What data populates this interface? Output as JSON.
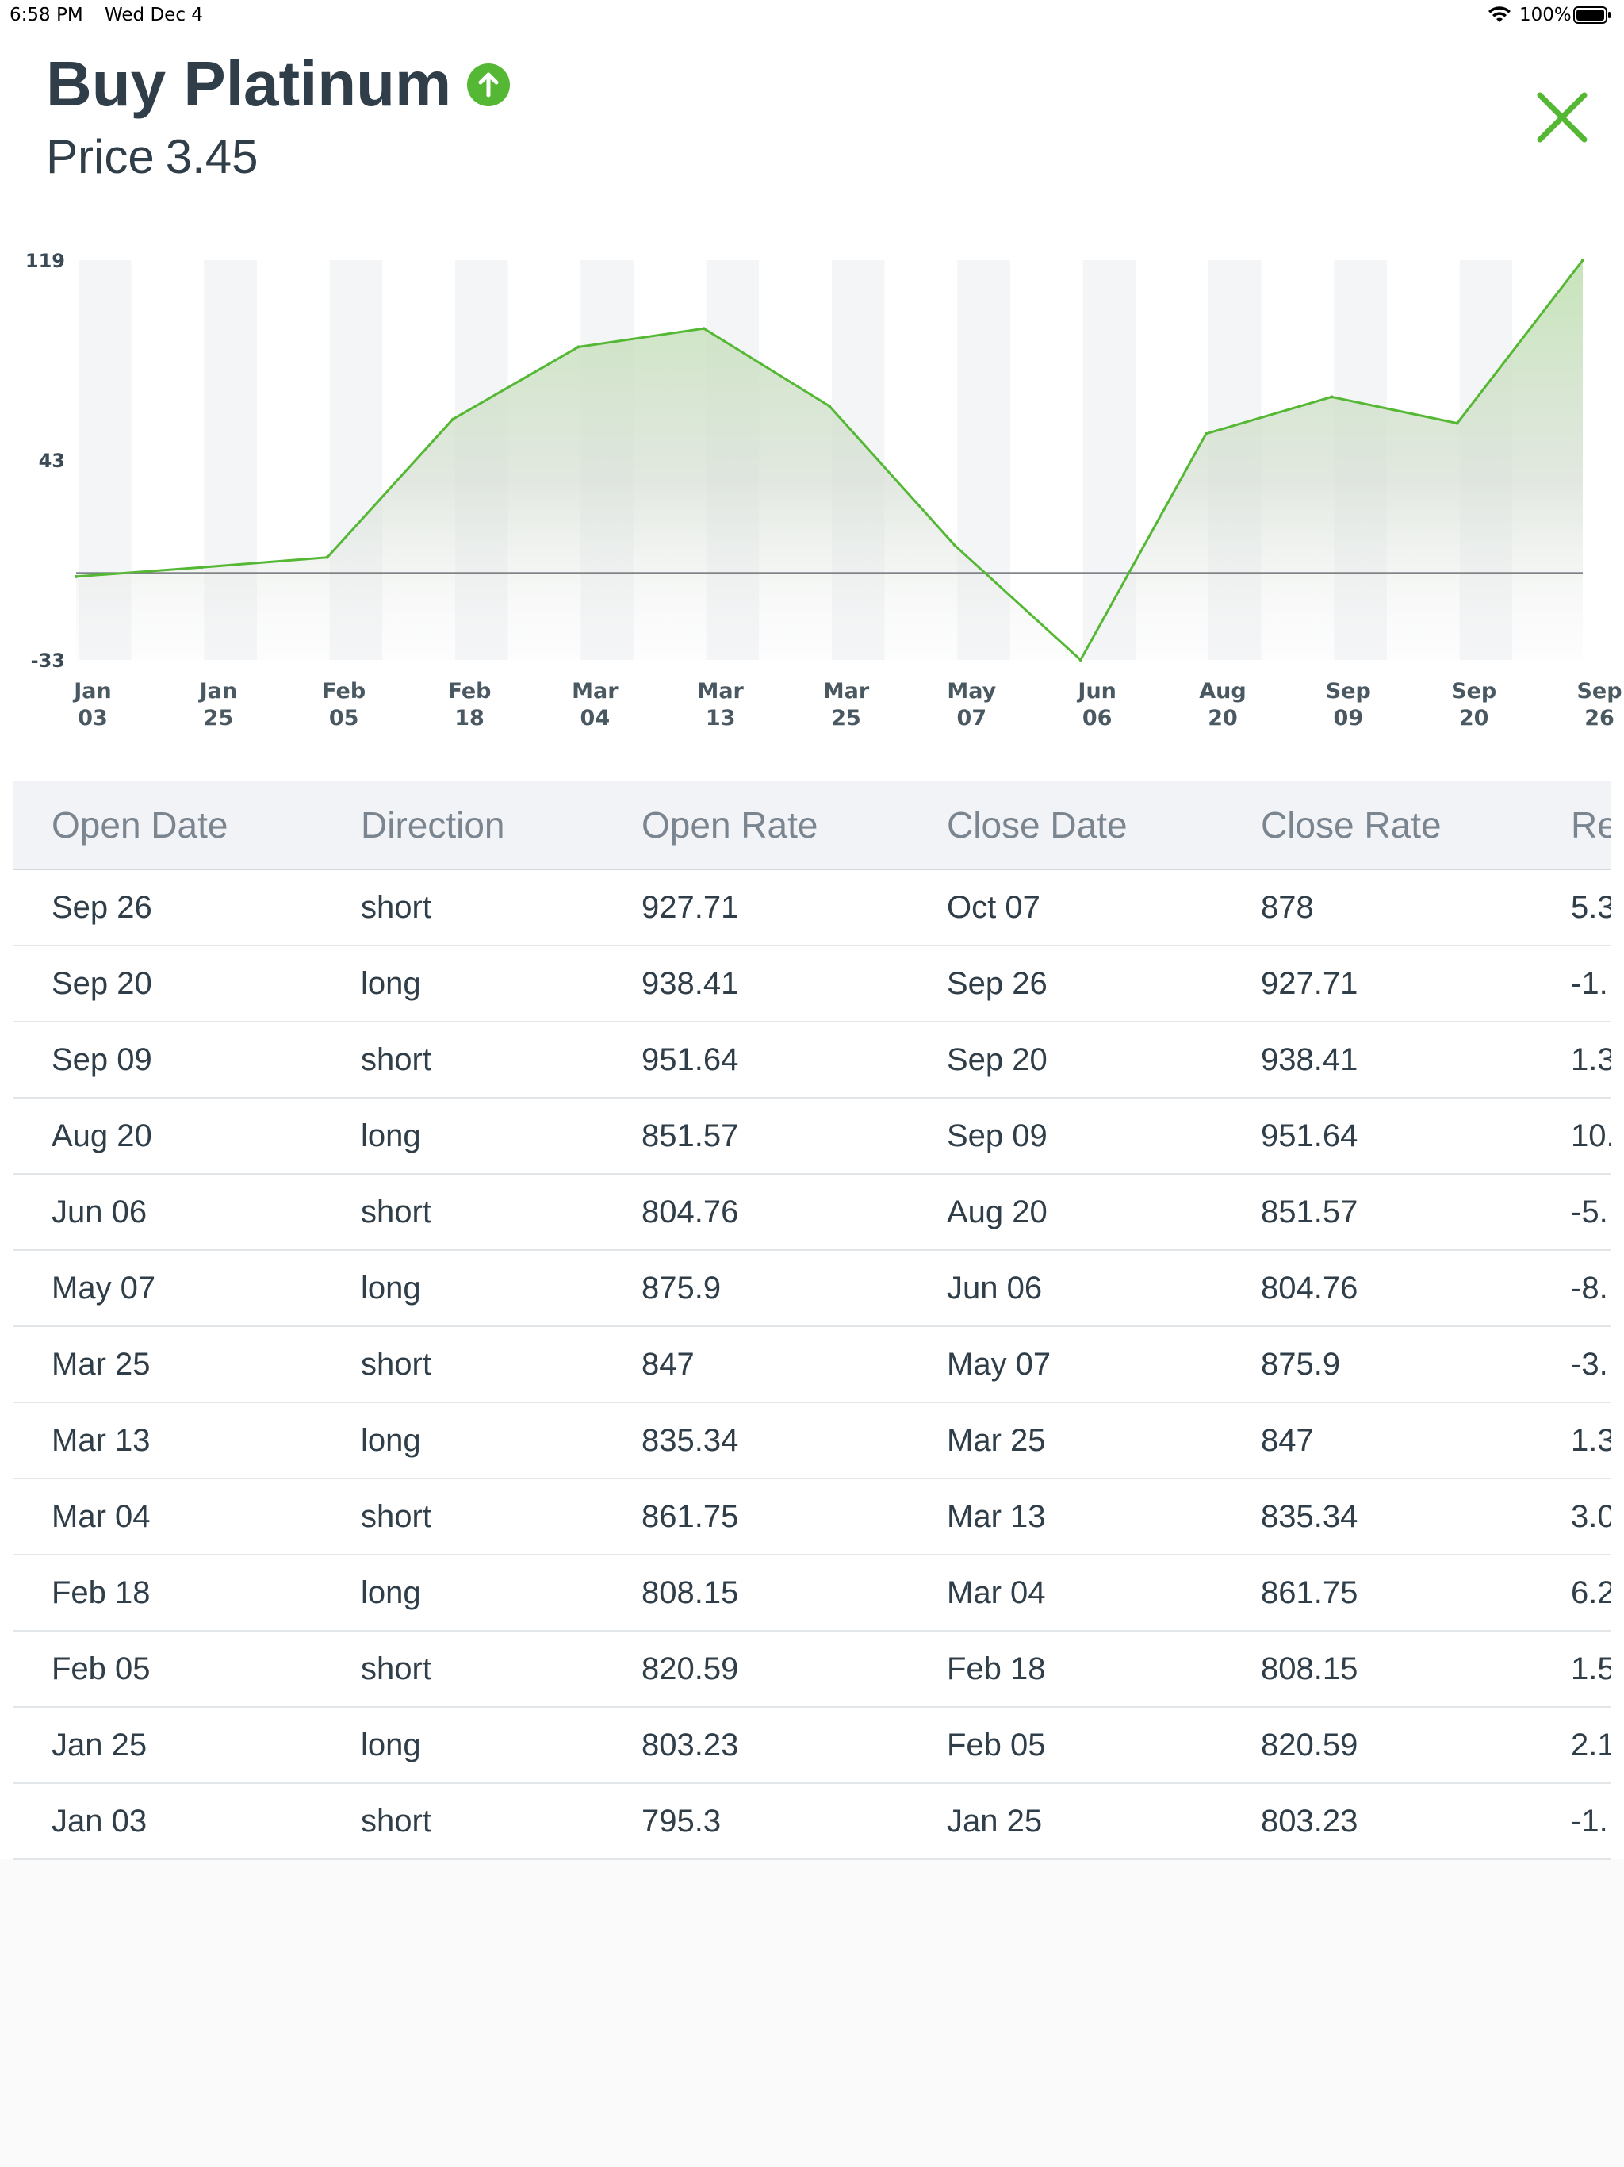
{
  "status_bar": {
    "time": "6:58 PM",
    "date": "Wed Dec 4",
    "battery": "100%",
    "wifi_icon": "wifi-icon",
    "battery_icon": "battery-icon"
  },
  "header": {
    "title": "Buy Platinum",
    "trend_icon": "arrow-up-circle-icon",
    "price_label": "Price",
    "price_value": "3.45",
    "close_icon": "close-icon"
  },
  "colors": {
    "accent": "#55b834",
    "text": "#2f3e48",
    "column_band": "#f4f5f7"
  },
  "chart_data": {
    "type": "area",
    "x": [
      "Jan 03",
      "Jan 25",
      "Feb 05",
      "Feb 18",
      "Mar 04",
      "Mar 13",
      "Mar 25",
      "May 07",
      "Jun 06",
      "Aug 20",
      "Sep 09",
      "Sep 20",
      "Sep 26"
    ],
    "x_ticks": [
      [
        "Jan",
        "03"
      ],
      [
        "Jan",
        "25"
      ],
      [
        "Feb",
        "05"
      ],
      [
        "Feb",
        "18"
      ],
      [
        "Mar",
        "04"
      ],
      [
        "Mar",
        "13"
      ],
      [
        "Mar",
        "25"
      ],
      [
        "May",
        "07"
      ],
      [
        "Jun",
        "06"
      ],
      [
        "Aug",
        "20"
      ],
      [
        "Sep",
        "09"
      ],
      [
        "Sep",
        "20"
      ],
      [
        "Sep",
        "26"
      ]
    ],
    "values": [
      -1.3,
      2.2,
      6.0,
      58.5,
      86.0,
      93.0,
      63.5,
      10.5,
      -33.0,
      53.0,
      67.0,
      57.0,
      119.0
    ],
    "y_ticks": [
      "119",
      "43",
      "-33"
    ],
    "ylim": [
      -33,
      119
    ],
    "baseline": 0,
    "grid": false,
    "legend": "none"
  },
  "table": {
    "columns": [
      "Open Date",
      "Direction",
      "Open Rate",
      "Close Date",
      "Close Rate",
      "Re"
    ],
    "rows": [
      [
        "Sep 26",
        "short",
        "927.71",
        "Oct 07",
        "878",
        "5.3"
      ],
      [
        "Sep 20",
        "long",
        "938.41",
        "Sep 26",
        "927.71",
        "-1."
      ],
      [
        "Sep 09",
        "short",
        "951.64",
        "Sep 20",
        "938.41",
        "1.3"
      ],
      [
        "Aug 20",
        "long",
        "851.57",
        "Sep 09",
        "951.64",
        "10."
      ],
      [
        "Jun 06",
        "short",
        "804.76",
        "Aug 20",
        "851.57",
        "-5."
      ],
      [
        "May 07",
        "long",
        "875.9",
        "Jun 06",
        "804.76",
        "-8."
      ],
      [
        "Mar 25",
        "short",
        "847",
        "May 07",
        "875.9",
        "-3."
      ],
      [
        "Mar 13",
        "long",
        "835.34",
        "Mar 25",
        "847",
        "1.3"
      ],
      [
        "Mar 04",
        "short",
        "861.75",
        "Mar 13",
        "835.34",
        "3.0"
      ],
      [
        "Feb 18",
        "long",
        "808.15",
        "Mar 04",
        "861.75",
        "6.2"
      ],
      [
        "Feb 05",
        "short",
        "820.59",
        "Feb 18",
        "808.15",
        "1.5"
      ],
      [
        "Jan 25",
        "long",
        "803.23",
        "Feb 05",
        "820.59",
        "2.1"
      ],
      [
        "Jan 03",
        "short",
        "795.3",
        "Jan 25",
        "803.23",
        "-1."
      ]
    ]
  }
}
